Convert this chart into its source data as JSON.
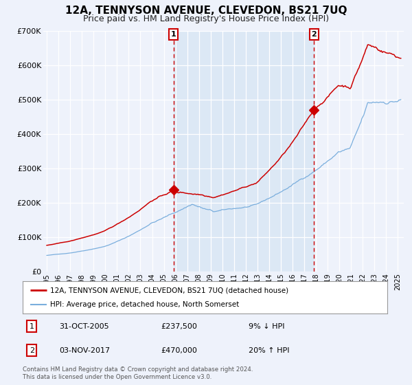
{
  "title": "12A, TENNYSON AVENUE, CLEVEDON, BS21 7UQ",
  "subtitle": "Price paid vs. HM Land Registry's House Price Index (HPI)",
  "ylim": [
    0,
    700000
  ],
  "xlim_start": 1994.7,
  "xlim_end": 2025.5,
  "yticks": [
    0,
    100000,
    200000,
    300000,
    400000,
    500000,
    600000,
    700000
  ],
  "ytick_labels": [
    "£0",
    "£100K",
    "£200K",
    "£300K",
    "£400K",
    "£500K",
    "£600K",
    "£700K"
  ],
  "xticks": [
    1995,
    1996,
    1997,
    1998,
    1999,
    2000,
    2001,
    2002,
    2003,
    2004,
    2005,
    2006,
    2007,
    2008,
    2009,
    2010,
    2011,
    2012,
    2013,
    2014,
    2015,
    2016,
    2017,
    2018,
    2019,
    2020,
    2021,
    2022,
    2023,
    2024,
    2025
  ],
  "background_color": "#eef2fb",
  "plot_bg_color": "#eef2fb",
  "grid_color": "#ffffff",
  "red_line_color": "#cc0000",
  "blue_line_color": "#7aaedd",
  "shade_color": "#dce8f5",
  "sale1_x": 2005.83,
  "sale1_y": 237500,
  "sale2_x": 2017.84,
  "sale2_y": 470000,
  "legend_line1": "12A, TENNYSON AVENUE, CLEVEDON, BS21 7UQ (detached house)",
  "legend_line2": "HPI: Average price, detached house, North Somerset",
  "annotation1_date": "31-OCT-2005",
  "annotation1_price": "£237,500",
  "annotation1_hpi": "9% ↓ HPI",
  "annotation2_date": "03-NOV-2017",
  "annotation2_price": "£470,000",
  "annotation2_hpi": "20% ↑ HPI",
  "footer": "Contains HM Land Registry data © Crown copyright and database right 2024.\nThis data is licensed under the Open Government Licence v3.0.",
  "title_fontsize": 11,
  "subtitle_fontsize": 9
}
